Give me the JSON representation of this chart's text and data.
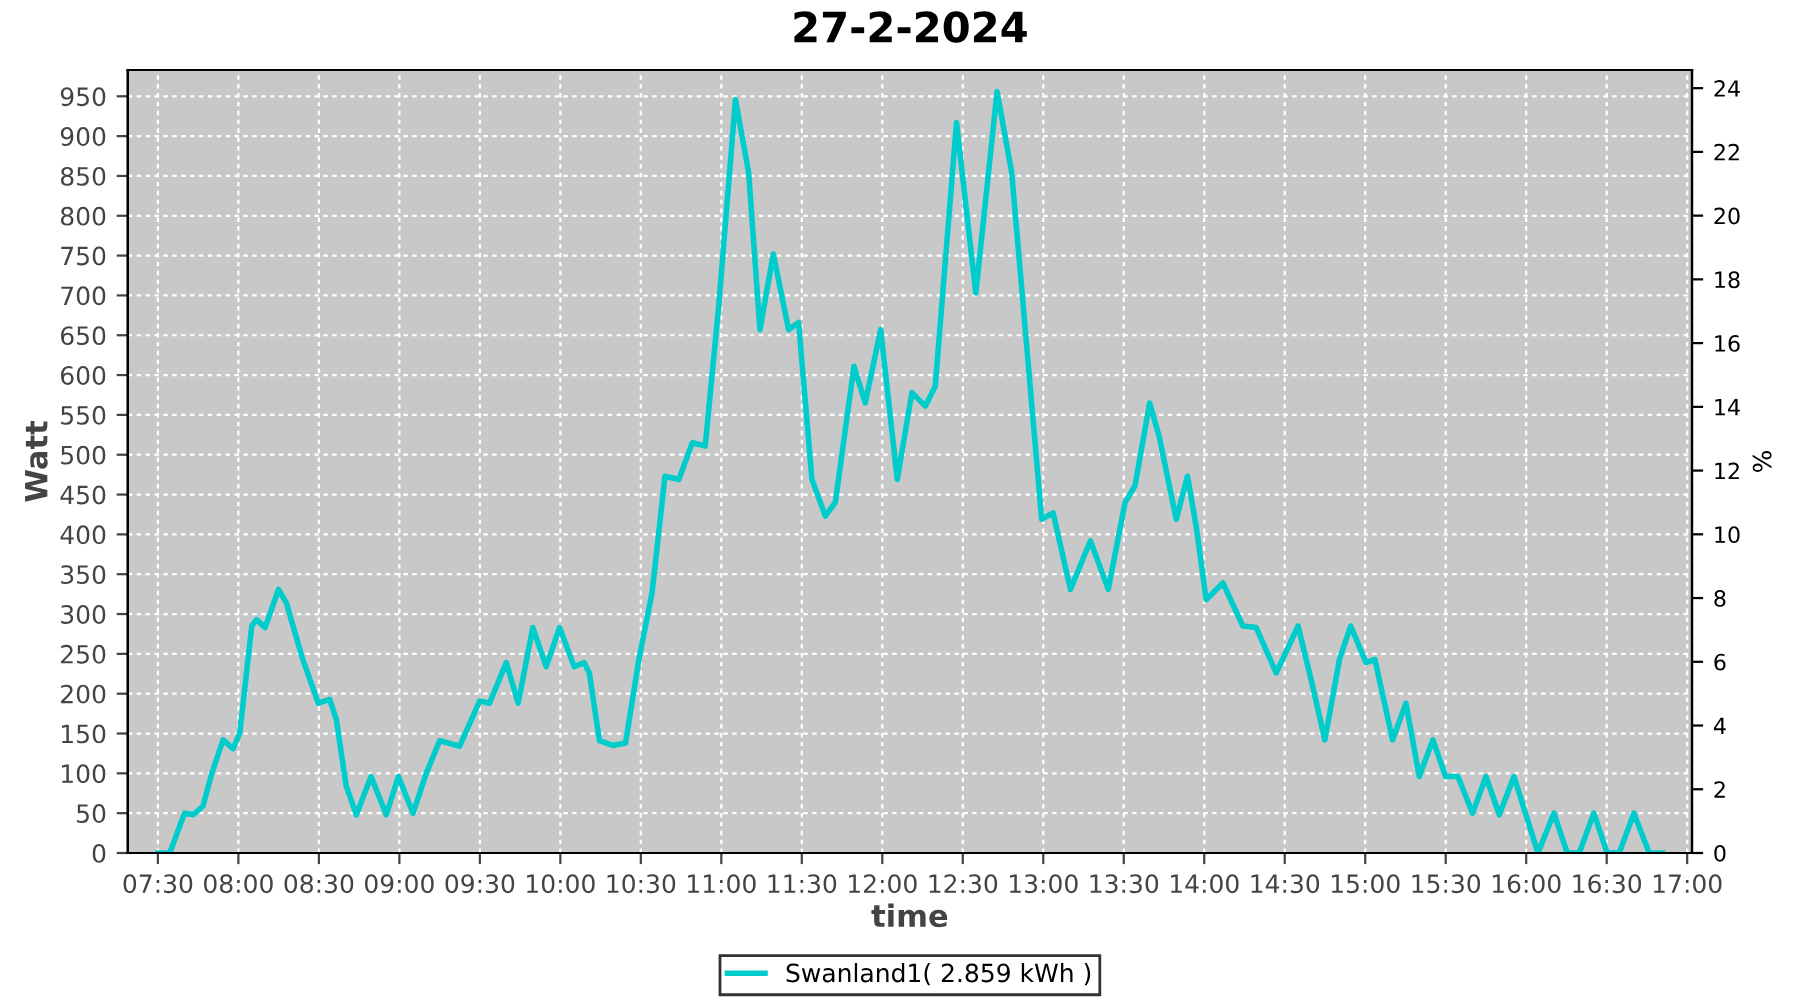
{
  "chart_data": {
    "type": "line",
    "title": "27-2-2024",
    "xlabel": "time",
    "ylabel": "Watt",
    "y2label": "%",
    "xlim": [
      7.313,
      17.03
    ],
    "ylim": [
      0,
      983
    ],
    "y2lim": [
      0,
      24.57
    ],
    "xticks": [
      {
        "value": 7.5,
        "label": "07:30"
      },
      {
        "value": 8,
        "label": "08:00"
      },
      {
        "value": 8.5,
        "label": "08:30"
      },
      {
        "value": 9,
        "label": "09:00"
      },
      {
        "value": 9.5,
        "label": "09:30"
      },
      {
        "value": 10,
        "label": "10:00"
      },
      {
        "value": 10.5,
        "label": "10:30"
      },
      {
        "value": 11,
        "label": "11:00"
      },
      {
        "value": 11.5,
        "label": "11:30"
      },
      {
        "value": 12,
        "label": "12:00"
      },
      {
        "value": 12.5,
        "label": "12:30"
      },
      {
        "value": 13,
        "label": "13:00"
      },
      {
        "value": 13.5,
        "label": "13:30"
      },
      {
        "value": 14,
        "label": "14:00"
      },
      {
        "value": 14.5,
        "label": "14:30"
      },
      {
        "value": 15,
        "label": "15:00"
      },
      {
        "value": 15.5,
        "label": "15:30"
      },
      {
        "value": 16,
        "label": "16:00"
      },
      {
        "value": 16.5,
        "label": "16:30"
      },
      {
        "value": 17,
        "label": "17:00"
      }
    ],
    "yticks": [
      0,
      50,
      100,
      150,
      200,
      250,
      300,
      350,
      400,
      450,
      500,
      550,
      600,
      650,
      700,
      750,
      800,
      850,
      900,
      950
    ],
    "y2ticks": [
      0,
      2,
      4,
      6,
      8,
      10,
      12,
      14,
      16,
      18,
      20,
      22,
      24
    ],
    "grid": true,
    "legend": "bottom",
    "line_style": "solid",
    "marker": "none",
    "series": [
      {
        "name": "Swanland1( 2.859 kWh )",
        "color": "#00cccc",
        "x": [
          7.5,
          7.574,
          7.665,
          7.72,
          7.78,
          7.835,
          7.905,
          7.967,
          8.009,
          8.083,
          8.112,
          8.166,
          8.249,
          8.298,
          8.4,
          8.497,
          8.567,
          8.608,
          8.67,
          8.733,
          8.824,
          8.919,
          8.994,
          9.085,
          9.167,
          9.25,
          9.374,
          9.499,
          9.56,
          9.664,
          9.738,
          9.829,
          9.912,
          9.995,
          10.086,
          10.148,
          10.18,
          10.243,
          10.325,
          10.405,
          10.488,
          10.57,
          10.65,
          10.736,
          10.82,
          10.9,
          10.984,
          11.088,
          11.17,
          11.24,
          11.323,
          11.418,
          11.48,
          11.563,
          11.646,
          11.708,
          11.824,
          11.894,
          11.99,
          12.093,
          12.184,
          12.267,
          12.329,
          12.461,
          12.581,
          12.713,
          12.804,
          12.99,
          13.061,
          13.169,
          13.293,
          13.404,
          13.508,
          13.57,
          13.661,
          13.72,
          13.826,
          13.896,
          13.95,
          14.012,
          14.116,
          14.24,
          14.323,
          14.447,
          14.583,
          14.674,
          14.749,
          14.84,
          14.91,
          15.005,
          15.06,
          15.17,
          15.253,
          15.336,
          15.42,
          15.5,
          15.576,
          15.667,
          15.75,
          15.833,
          15.924,
          16.073,
          16.172,
          16.255,
          16.33,
          16.42,
          16.503,
          16.578,
          16.669,
          16.764,
          16.847
        ],
        "values": [
          0,
          0,
          50,
          48,
          59,
          100,
          142,
          131,
          151,
          285,
          293,
          283,
          331,
          314,
          243,
          188,
          193,
          168,
          84,
          48,
          96,
          48,
          96,
          50,
          100,
          141,
          134,
          191,
          188,
          239,
          188,
          283,
          234,
          283,
          234,
          239,
          226,
          141,
          135,
          138,
          243,
          327,
          473,
          469,
          515,
          511,
          687,
          946,
          854,
          657,
          752,
          657,
          666,
          469,
          423,
          440,
          611,
          565,
          657,
          469,
          578,
          561,
          586,
          917,
          703,
          956,
          854,
          419,
          427,
          331,
          392,
          331,
          440,
          461,
          565,
          523,
          419,
          473,
          410,
          318,
          339,
          285,
          283,
          226,
          285,
          209,
          142,
          243,
          285,
          239,
          243,
          142,
          188,
          96,
          142,
          96,
          96,
          50,
          96,
          48,
          96,
          0,
          50,
          0,
          0,
          50,
          0,
          0,
          50,
          0,
          0
        ]
      }
    ]
  }
}
